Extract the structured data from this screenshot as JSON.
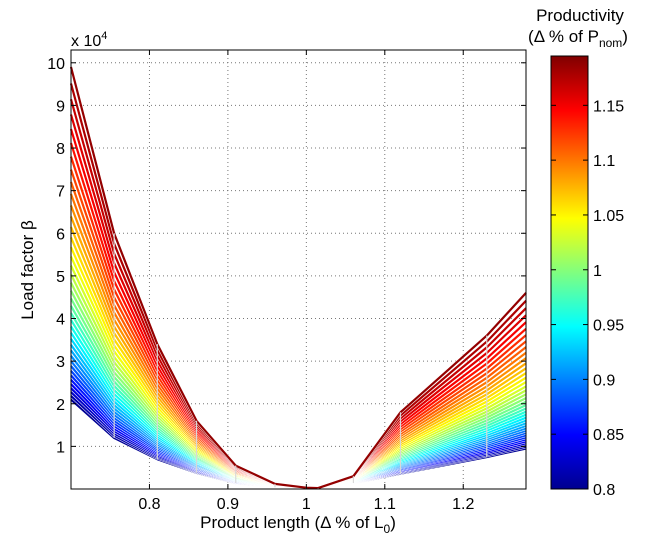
{
  "chart_data": {
    "type": "line",
    "xlabel": {
      "main": "Product length (Δ % of L",
      "sub": "0",
      "close": ")"
    },
    "ylabel": "Load factor β",
    "y_multiplier": {
      "base": "x 10",
      "exp": "4"
    },
    "xlim": [
      0.7,
      1.28
    ],
    "ylim": [
      0,
      10.3
    ],
    "x_ticks": [
      "0.8",
      "0.9",
      "1",
      "1.1",
      "1.2"
    ],
    "x_tick_values": [
      0.8,
      0.9,
      1.0,
      1.1,
      1.2
    ],
    "y_ticks": [
      "1",
      "2",
      "3",
      "4",
      "5",
      "6",
      "7",
      "8",
      "9",
      "10"
    ],
    "y_tick_values": [
      1,
      2,
      3,
      4,
      5,
      6,
      7,
      8,
      9,
      10
    ],
    "grid": true,
    "x": [
      0.7,
      0.755,
      0.81,
      0.86,
      0.91,
      0.96,
      1.0,
      1.015,
      1.06,
      1.12,
      1.23,
      1.28
    ],
    "lowest_curve": [
      2.1,
      1.2,
      0.7,
      0.38,
      0.14,
      0.04,
      0.01,
      0.01,
      0.14,
      0.36,
      0.75,
      0.95
    ],
    "highest_curve": [
      9.9,
      6.0,
      3.4,
      1.6,
      0.55,
      0.12,
      0.03,
      0.02,
      0.3,
      1.8,
      3.6,
      4.6
    ],
    "series_count": 40,
    "colorbar": {
      "title_line1": "Productivity",
      "title_line2": {
        "main": "(Δ % of P",
        "sub": "nom",
        "close": ")"
      },
      "range": [
        0.8,
        1.195
      ],
      "ticks": [
        "0.8",
        "0.85",
        "0.9",
        "0.95",
        "1",
        "1.05",
        "1.1",
        "1.15"
      ],
      "tick_values": [
        0.8,
        0.85,
        0.9,
        0.95,
        1.0,
        1.05,
        1.1,
        1.15
      ],
      "colormap": "jet"
    }
  }
}
